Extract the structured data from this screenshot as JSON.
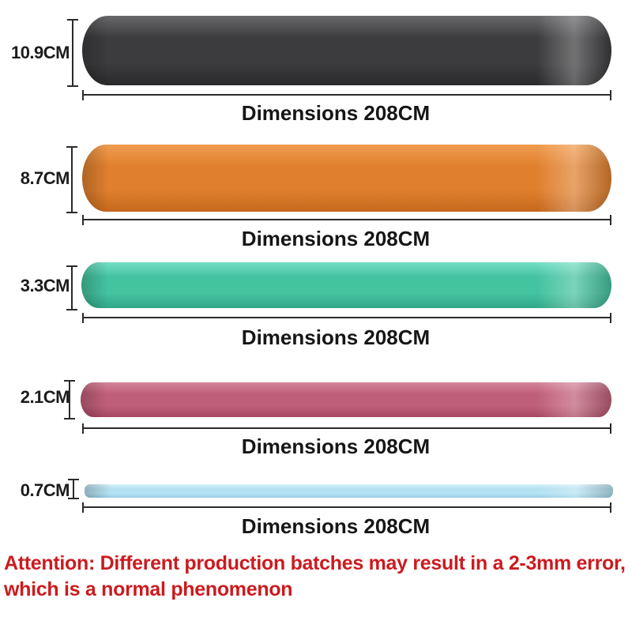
{
  "bands": [
    {
      "height_label": "10.9CM",
      "dim_label": "Dimensions 208CM",
      "color": "#3c3c3e",
      "color_light": "#68686a",
      "color_dark": "#2a2a2c"
    },
    {
      "height_label": "8.7CM",
      "dim_label": "Dimensions 208CM",
      "color": "#e0802e",
      "color_light": "#f09c50",
      "color_dark": "#c4671c"
    },
    {
      "height_label": "3.3CM",
      "dim_label": "Dimensions 208CM",
      "color": "#44c39f",
      "color_light": "#74dfc2",
      "color_dark": "#2fa886"
    },
    {
      "height_label": "2.1CM",
      "dim_label": "Dimensions 208CM",
      "color": "#c05f7a",
      "color_light": "#d4849a",
      "color_dark": "#a84760"
    },
    {
      "height_label": "0.7CM",
      "dim_label": "Dimensions 208CM",
      "color": "#b5e2f2",
      "color_light": "#d6f1fb",
      "color_dark": "#97cfe4"
    }
  ],
  "attention": {
    "line1": "Attention: Different production batches may result in a 2-3mm error,",
    "line2": "which is a normal phenomenon",
    "color": "#cb1b1f"
  }
}
